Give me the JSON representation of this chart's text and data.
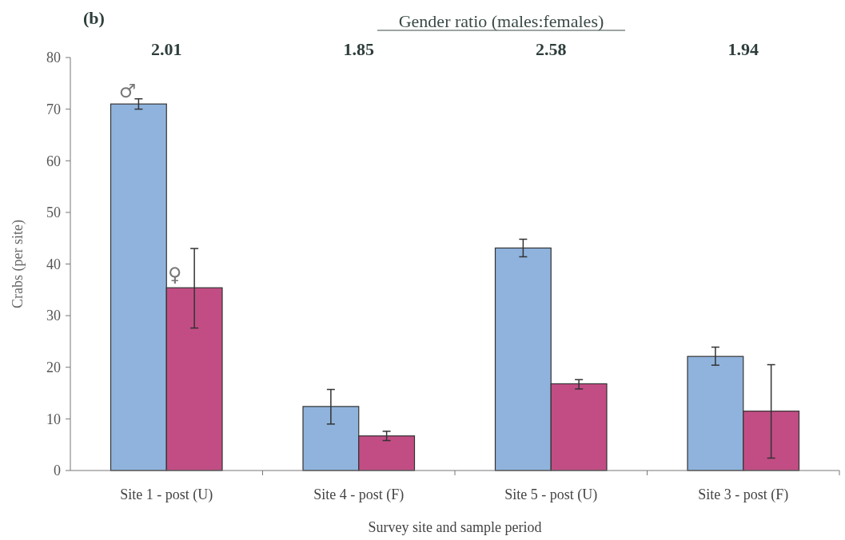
{
  "chart_data": {
    "type": "bar",
    "title": "Gender ratio (males:females)",
    "xlabel": "Survey site and sample period",
    "ylabel": "Crabs (per site)",
    "categories": [
      "Site 1 - post (U)",
      "Site 4 - post (F)",
      "Site 5 - post (U)",
      "Site 3 - post (F)"
    ],
    "series": [
      {
        "name": "♂",
        "color": "#8fb3dc",
        "values": [
          71.0,
          12.4,
          43.1,
          22.1
        ],
        "errors": [
          [
            70.0,
            72.0
          ],
          [
            9.0,
            15.7
          ],
          [
            41.4,
            44.8
          ],
          [
            20.4,
            23.9
          ]
        ]
      },
      {
        "name": "♀",
        "color": "#c24d84",
        "values": [
          35.4,
          6.7,
          16.8,
          11.5
        ],
        "errors": [
          [
            27.6,
            43.0
          ],
          [
            5.8,
            7.6
          ],
          [
            15.8,
            17.6
          ],
          [
            2.4,
            20.5
          ]
        ]
      }
    ],
    "ylim": [
      0,
      80
    ],
    "yticks": [
      0,
      10,
      20,
      30,
      40,
      50,
      60,
      70,
      80
    ],
    "grid": false,
    "annotations": [
      "(b)",
      "2.01",
      "1.85",
      "2.58",
      "1.94"
    ]
  }
}
